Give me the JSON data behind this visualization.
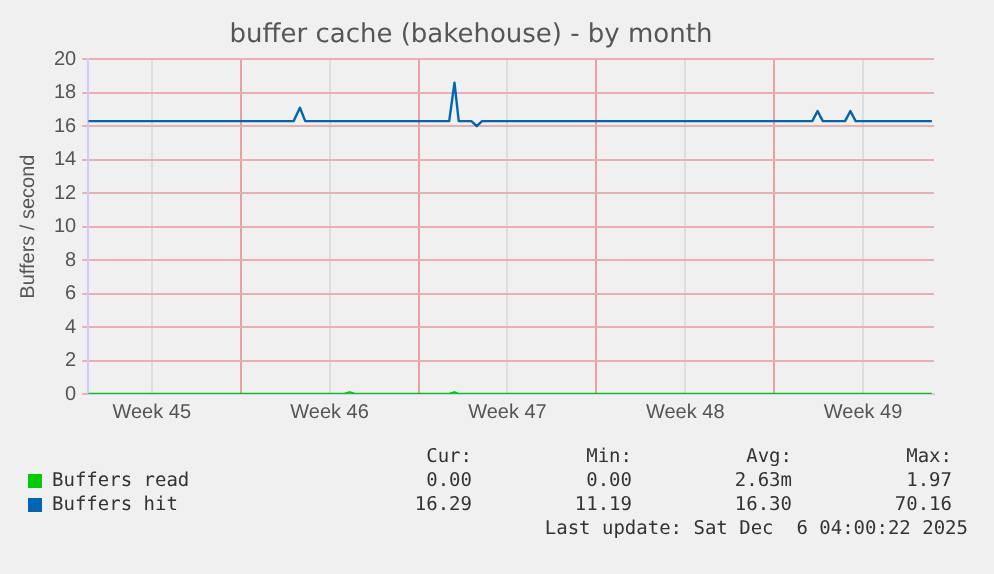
{
  "chart_data": {
    "type": "line",
    "title": "buffer cache (bakehouse) - by month",
    "ylabel": "Buffers / second",
    "xlim": [
      "2025-11-04",
      "2025-12-07T07:00"
    ],
    "xticks": [
      {
        "value": "2025-11-06T12:00",
        "label": "Week 45"
      },
      {
        "value": "2025-11-10",
        "label": null
      },
      {
        "value": "2025-11-13T12:00",
        "label": "Week 46"
      },
      {
        "value": "2025-11-17",
        "label": null
      },
      {
        "value": "2025-11-20T12:00",
        "label": "Week 47"
      },
      {
        "value": "2025-11-24",
        "label": null
      },
      {
        "value": "2025-11-27T12:00",
        "label": "Week 48"
      },
      {
        "value": "2025-12-01",
        "label": null
      },
      {
        "value": "2025-12-04T12:00",
        "label": "Week 49"
      }
    ],
    "ylim": [
      0,
      20
    ],
    "yticks": [
      0,
      2,
      4,
      6,
      8,
      10,
      12,
      14,
      16,
      18,
      20
    ],
    "grid": true,
    "legend": "bottom",
    "marker": "none",
    "series": [
      {
        "name": "Buffers read",
        "color": "#00cc00",
        "x": [
          "2025-11-04",
          "2025-11-14T02:00",
          "2025-11-14T07:00",
          "2025-11-14T12:00",
          "2025-11-18T05:00",
          "2025-11-18T10:00",
          "2025-11-18T14:00",
          "2025-12-07T05:00"
        ],
        "values": [
          0,
          0,
          0.1,
          0,
          0,
          0.1,
          0,
          0
        ]
      },
      {
        "name": "Buffers hit",
        "color": "#0066b3",
        "x": [
          "2025-11-04",
          "2025-11-12T02:00",
          "2025-11-12T08:00",
          "2025-11-12T13:00",
          "2025-11-18T05:00",
          "2025-11-18T10:00",
          "2025-11-18T14:00",
          "2025-11-19T02:00",
          "2025-11-19T07:00",
          "2025-11-19T12:00",
          "2025-12-02T12:00",
          "2025-12-02T17:00",
          "2025-12-02T22:00",
          "2025-12-03T19:00",
          "2025-12-04",
          "2025-12-04T05:00",
          "2025-12-07T05:00"
        ],
        "values": [
          16.3,
          16.3,
          17.1,
          16.3,
          16.3,
          18.6,
          16.3,
          16.3,
          16.0,
          16.3,
          16.3,
          16.9,
          16.3,
          16.3,
          16.9,
          16.3,
          16.3
        ]
      }
    ],
    "annotations": [
      "Cur:",
      "Min:",
      "Avg:",
      "Max:",
      "0.00",
      "0.00",
      "2.63m",
      "1.97",
      "16.29",
      "11.19",
      "16.30",
      "70.16",
      "Last update: Sat Dec  6 04:00:22 2025"
    ]
  }
}
